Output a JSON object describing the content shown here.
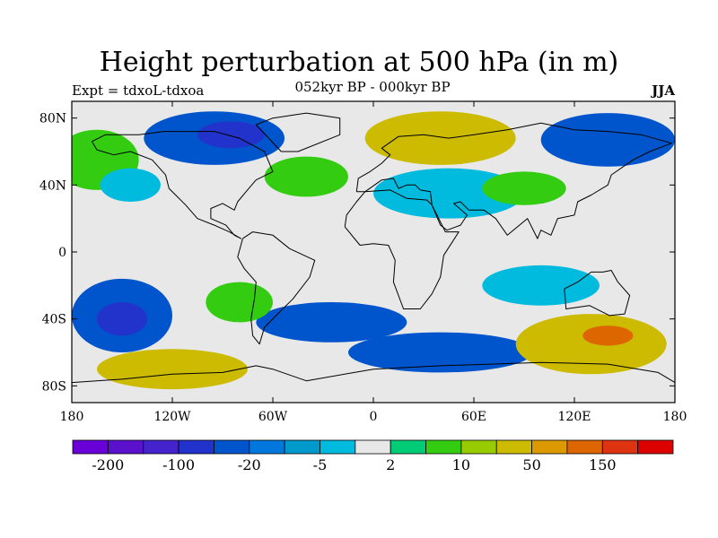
{
  "header": {
    "title": "Height perturbation at 500 hPa (in m)",
    "left_label": "Expt = tdxoL-tdxoa",
    "center_label": "052kyr BP - 000kyr BP",
    "right_label": "JJA"
  },
  "map": {
    "projection": "cylindrical-equidistant",
    "lon_range": [
      -180,
      180
    ],
    "lat_range": [
      -90,
      90
    ],
    "lon_ticks": [
      {
        "value": -180,
        "label": "180"
      },
      {
        "value": -120,
        "label": "120W"
      },
      {
        "value": -60,
        "label": "60W"
      },
      {
        "value": 0,
        "label": "0"
      },
      {
        "value": 60,
        "label": "60E"
      },
      {
        "value": 120,
        "label": "120E"
      },
      {
        "value": 180,
        "label": "180"
      }
    ],
    "lat_ticks": [
      {
        "value": 80,
        "label": "80N"
      },
      {
        "value": 40,
        "label": "40N"
      },
      {
        "value": 0,
        "label": "0"
      },
      {
        "value": -40,
        "label": "40S"
      },
      {
        "value": -80,
        "label": "80S"
      }
    ],
    "background_color": "#e8e8e8",
    "anomalies": [
      {
        "lon": -95,
        "lat": 68,
        "rx": 42,
        "ry": 16,
        "level": -20
      },
      {
        "lon": -85,
        "lat": 70,
        "rx": 20,
        "ry": 8,
        "level": -100
      },
      {
        "lon": 40,
        "lat": 68,
        "rx": 45,
        "ry": 16,
        "level": 50
      },
      {
        "lon": 50,
        "lat": 65,
        "rx": 22,
        "ry": 7,
        "level": 50
      },
      {
        "lon": 140,
        "lat": 67,
        "rx": 40,
        "ry": 16,
        "level": -20
      },
      {
        "lon": 150,
        "lat": 65,
        "rx": 20,
        "ry": 8,
        "level": -20
      },
      {
        "lon": -165,
        "lat": 55,
        "rx": 25,
        "ry": 18,
        "level": 10
      },
      {
        "lon": -145,
        "lat": 40,
        "rx": 18,
        "ry": 10,
        "level": -5
      },
      {
        "lon": -40,
        "lat": 45,
        "rx": 25,
        "ry": 12,
        "level": 10
      },
      {
        "lon": 45,
        "lat": 35,
        "rx": 45,
        "ry": 15,
        "level": -5
      },
      {
        "lon": 90,
        "lat": 38,
        "rx": 25,
        "ry": 10,
        "level": 10
      },
      {
        "lon": -150,
        "lat": -38,
        "rx": 30,
        "ry": 22,
        "level": -20
      },
      {
        "lon": -150,
        "lat": -40,
        "rx": 15,
        "ry": 10,
        "level": -100
      },
      {
        "lon": -120,
        "lat": -70,
        "rx": 45,
        "ry": 12,
        "level": 50
      },
      {
        "lon": -25,
        "lat": -42,
        "rx": 45,
        "ry": 12,
        "level": -20
      },
      {
        "lon": 40,
        "lat": -60,
        "rx": 55,
        "ry": 12,
        "level": -20
      },
      {
        "lon": 130,
        "lat": -55,
        "rx": 45,
        "ry": 18,
        "level": 50
      },
      {
        "lon": 140,
        "lat": -50,
        "rx": 15,
        "ry": 6,
        "level": 150
      },
      {
        "lon": 100,
        "lat": -20,
        "rx": 35,
        "ry": 12,
        "level": -5
      },
      {
        "lon": -80,
        "lat": -30,
        "rx": 20,
        "ry": 12,
        "level": 10
      }
    ]
  },
  "colorbar": {
    "colors": [
      "#6a00d8",
      "#5b10cc",
      "#4422cc",
      "#2233cc",
      "#0055cc",
      "#0077dd",
      "#0099cc",
      "#00bbdd",
      "#e8e8e8",
      "#00cc77",
      "#33cc11",
      "#99cc00",
      "#ccbb00",
      "#dd9900",
      "#dd6600",
      "#dd3311",
      "#dd0000"
    ],
    "labels": [
      {
        "index": 1,
        "text": "-200"
      },
      {
        "index": 3,
        "text": "-100"
      },
      {
        "index": 5,
        "text": "-20"
      },
      {
        "index": 7,
        "text": "-5"
      },
      {
        "index": 9,
        "text": "2"
      },
      {
        "index": 11,
        "text": "10"
      },
      {
        "index": 13,
        "text": "50"
      },
      {
        "index": 15,
        "text": "150"
      }
    ],
    "level_colors": {
      "-200": "#6a00d8",
      "-100": "#2233cc",
      "-20": "#0055cc",
      "-5": "#00bbdd",
      "10": "#33cc11",
      "50": "#ccbb00",
      "150": "#dd6600"
    }
  }
}
